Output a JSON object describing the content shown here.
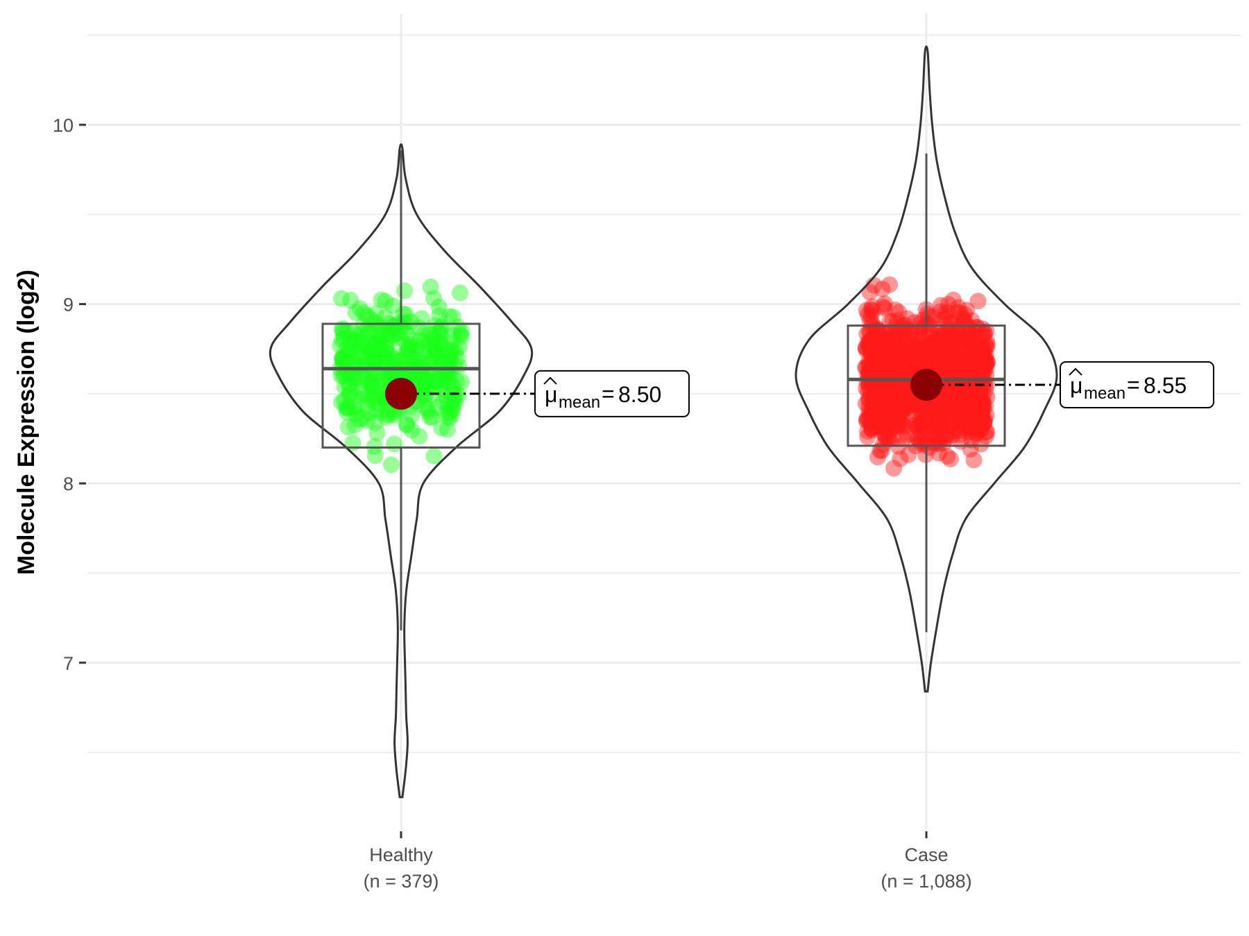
{
  "chart_data": {
    "type": "violin",
    "ylabel": "Molecule Expression (log2)",
    "xlabel": "",
    "ylim": [
      6.0,
      10.6
    ],
    "yticks": [
      7,
      8,
      9,
      10
    ],
    "ytick_labels": [
      "7",
      "8",
      "9",
      "10"
    ],
    "grid": true,
    "groups": [
      {
        "name": "Healthy",
        "n_label": "(n = 379)",
        "n": 379,
        "color": "#1aff1a",
        "mean": 8.5,
        "mean_label": "8.50",
        "median": 8.64,
        "q1": 8.2,
        "q3": 8.89,
        "whisker_low": 7.18,
        "whisker_high": 9.86,
        "min": 6.25,
        "max": 9.87,
        "density": [
          [
            6.25,
            0.01
          ],
          [
            6.4,
            0.035
          ],
          [
            6.55,
            0.05
          ],
          [
            6.7,
            0.04
          ],
          [
            6.85,
            0.035
          ],
          [
            7.0,
            0.03
          ],
          [
            7.2,
            0.025
          ],
          [
            7.4,
            0.04
          ],
          [
            7.6,
            0.08
          ],
          [
            7.8,
            0.12
          ],
          [
            8.0,
            0.17
          ],
          [
            8.2,
            0.42
          ],
          [
            8.4,
            0.75
          ],
          [
            8.6,
            0.94
          ],
          [
            8.75,
            1.0
          ],
          [
            8.9,
            0.85
          ],
          [
            9.1,
            0.6
          ],
          [
            9.3,
            0.33
          ],
          [
            9.5,
            0.12
          ],
          [
            9.7,
            0.035
          ],
          [
            9.87,
            0.01
          ]
        ]
      },
      {
        "name": "Case",
        "n_label": "(n = 1,088)",
        "n": 1088,
        "color": "#ff1a1a",
        "mean": 8.55,
        "mean_label": "8.55",
        "median": 8.58,
        "q1": 8.21,
        "q3": 8.88,
        "whisker_low": 7.17,
        "whisker_high": 9.84,
        "min": 6.84,
        "max": 10.41,
        "density": [
          [
            6.84,
            0.01
          ],
          [
            7.0,
            0.035
          ],
          [
            7.2,
            0.08
          ],
          [
            7.4,
            0.13
          ],
          [
            7.6,
            0.2
          ],
          [
            7.8,
            0.3
          ],
          [
            8.0,
            0.52
          ],
          [
            8.2,
            0.75
          ],
          [
            8.4,
            0.9
          ],
          [
            8.6,
            1.0
          ],
          [
            8.8,
            0.9
          ],
          [
            9.0,
            0.6
          ],
          [
            9.2,
            0.35
          ],
          [
            9.4,
            0.22
          ],
          [
            9.6,
            0.14
          ],
          [
            9.8,
            0.08
          ],
          [
            10.0,
            0.045
          ],
          [
            10.2,
            0.025
          ],
          [
            10.41,
            0.01
          ]
        ]
      }
    ]
  }
}
